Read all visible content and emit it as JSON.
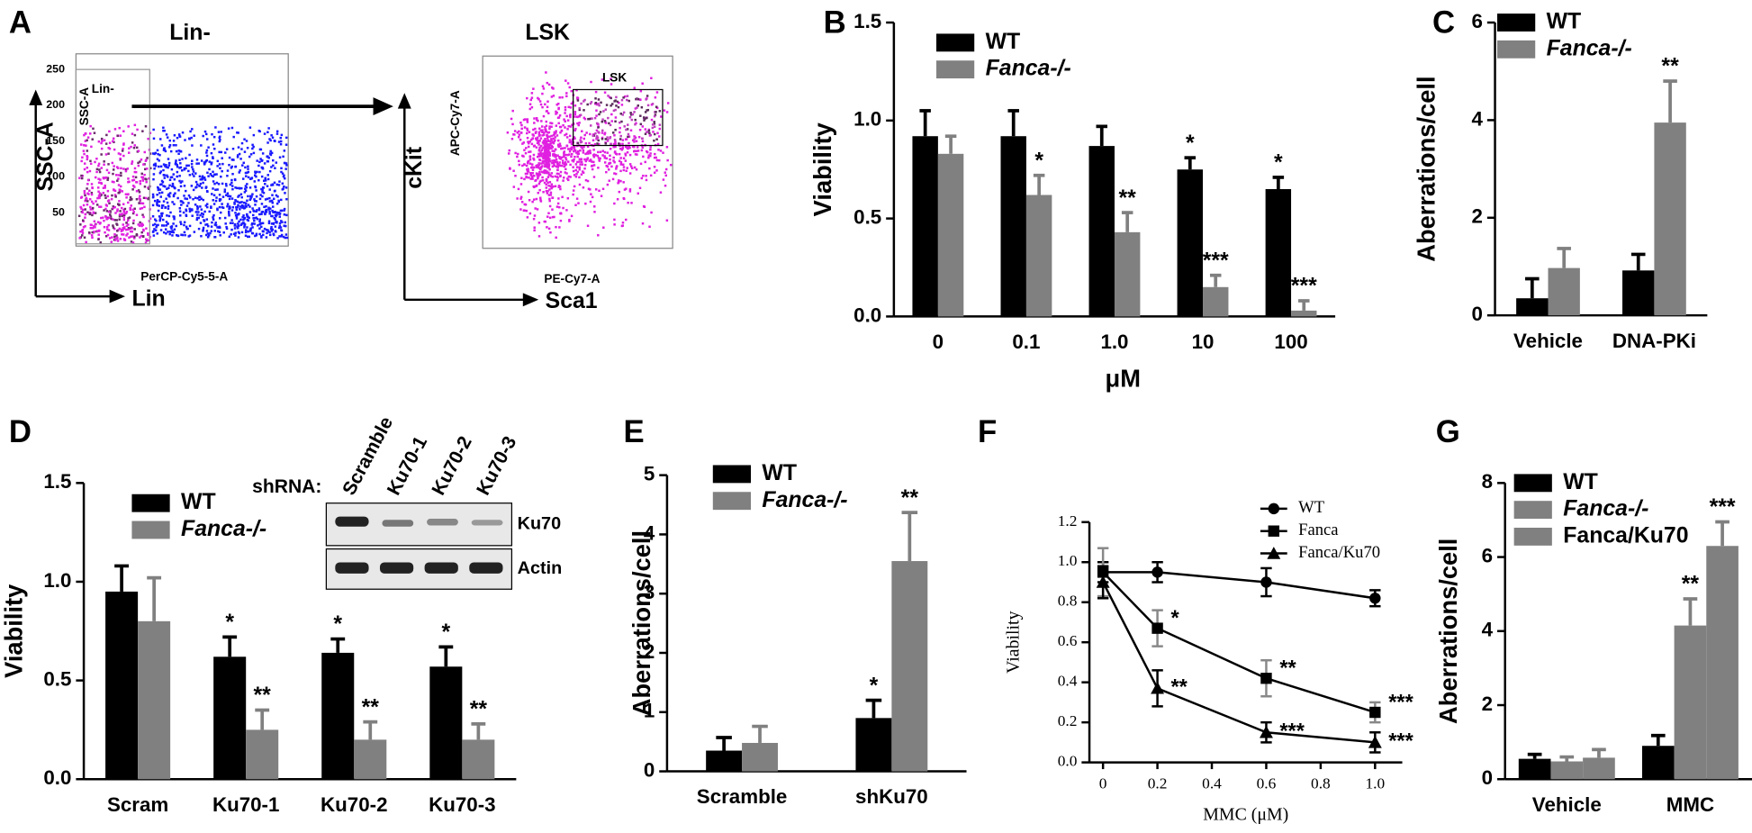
{
  "flow": {
    "panel": "A",
    "plots": [
      {
        "title": "Lin-",
        "y_label": "SSC-A",
        "x_label": "Lin",
        "y_channel": "SSC-A",
        "x_channel": "PerCP-Cy5-5-A",
        "gate": "Lin-",
        "yticks": [
          "250",
          "200",
          "150",
          "100",
          "50"
        ]
      },
      {
        "title": "LSK",
        "y_label": "cKit",
        "x_label": "Sca1",
        "y_channel": "APC-Cy7-A",
        "x_channel": "PE-Cy7-A",
        "gate": "LSK"
      }
    ]
  },
  "blot": {
    "label": "shRNA:",
    "lanes": [
      "Scramble",
      "Ku70-1",
      "Ku70-2",
      "Ku70-3"
    ],
    "rows": [
      "Ku70",
      "Actin"
    ]
  },
  "chart_data": [
    {
      "type": "bar",
      "panel": "B",
      "y_label": "Viability",
      "x_label": "μM",
      "categories": [
        "0",
        "0.1",
        "1.0",
        "10",
        "100"
      ],
      "ylim": [
        0,
        1.5
      ],
      "yticks": [
        {
          "value": 0,
          "label": "0.0"
        },
        {
          "value": 0.5,
          "label": "0.5"
        },
        {
          "value": 1,
          "label": "1.0"
        },
        {
          "value": 1.5,
          "label": "1.5"
        }
      ],
      "series": [
        {
          "name": "WT",
          "color": "#000000",
          "values": [
            0.92,
            0.92,
            0.87,
            0.75,
            0.65
          ],
          "errors": [
            0.13,
            0.13,
            0.1,
            0.06,
            0.06
          ],
          "significance": [
            null,
            null,
            null,
            "*",
            "*"
          ]
        },
        {
          "name": "Fanca-/-",
          "color": "#808080",
          "values": [
            0.83,
            0.62,
            0.43,
            0.15,
            0.03
          ],
          "errors": [
            0.09,
            0.1,
            0.1,
            0.06,
            0.05
          ],
          "significance": [
            null,
            "*",
            "**",
            "***",
            "***"
          ]
        }
      ]
    },
    {
      "type": "bar",
      "panel": "C",
      "y_label": "Aberrations/cell",
      "categories": [
        "Vehicle",
        "DNA-PKi"
      ],
      "ylim": [
        0,
        6
      ],
      "yticks": [
        0,
        2,
        4,
        6
      ],
      "series": [
        {
          "name": "WT",
          "color": "#000000",
          "values": [
            0.35,
            0.92
          ],
          "errors": [
            0.4,
            0.33
          ],
          "significance": [
            null,
            null
          ]
        },
        {
          "name": "Fanca-/-",
          "color": "#808080",
          "values": [
            0.97,
            3.95
          ],
          "errors": [
            0.4,
            0.85
          ],
          "significance": [
            null,
            "**"
          ]
        }
      ]
    },
    {
      "type": "bar",
      "panel": "D",
      "y_label": "Viability",
      "categories": [
        "Scram",
        "Ku70-1",
        "Ku70-2",
        "Ku70-3"
      ],
      "ylim": [
        0,
        1.5
      ],
      "yticks": [
        {
          "value": 0,
          "label": "0.0"
        },
        {
          "value": 0.5,
          "label": "0.5"
        },
        {
          "value": 1,
          "label": "1.0"
        },
        {
          "value": 1.5,
          "label": "1.5"
        }
      ],
      "series": [
        {
          "name": "WT",
          "color": "#000000",
          "values": [
            0.95,
            0.62,
            0.64,
            0.57
          ],
          "errors": [
            0.13,
            0.1,
            0.07,
            0.1
          ],
          "significance": [
            null,
            "*",
            "*",
            "*"
          ]
        },
        {
          "name": "Fanca-/-",
          "color": "#808080",
          "values": [
            0.8,
            0.25,
            0.2,
            0.2
          ],
          "errors": [
            0.22,
            0.1,
            0.09,
            0.08
          ],
          "significance": [
            null,
            "**",
            "**",
            "**"
          ]
        }
      ]
    },
    {
      "type": "bar",
      "panel": "E",
      "y_label": "Aberrations/cell",
      "categories": [
        "Scramble",
        "shKu70"
      ],
      "ylim": [
        0,
        5
      ],
      "yticks": [
        0,
        1,
        2,
        3,
        4,
        5
      ],
      "series": [
        {
          "name": "WT",
          "color": "#000000",
          "values": [
            0.35,
            0.9
          ],
          "errors": [
            0.22,
            0.3
          ],
          "significance": [
            null,
            "*"
          ]
        },
        {
          "name": "Fanca-/-",
          "color": "#808080",
          "values": [
            0.48,
            3.55
          ],
          "errors": [
            0.28,
            0.82
          ],
          "significance": [
            null,
            "**"
          ]
        }
      ]
    },
    {
      "type": "line",
      "panel": "F",
      "y_label": "Viability",
      "x_label": "MMC (μM)",
      "x": [
        0,
        0.2,
        0.6,
        1
      ],
      "xlim": [
        -0.05,
        1.1
      ],
      "xticks": [
        0,
        0.2,
        0.4,
        0.6,
        0.8,
        {
          "value": 1,
          "label": "1.0"
        }
      ],
      "ylim": [
        0,
        1.2
      ],
      "yticks": [
        {
          "value": 0,
          "label": "0.0"
        },
        0.2,
        0.4,
        0.6,
        0.8,
        {
          "value": 1,
          "label": "1.0"
        },
        {
          "value": 1.2,
          "label": "1.2"
        }
      ],
      "series": [
        {
          "name": "WT",
          "color": "#000000",
          "marker": "circle",
          "values": [
            0.95,
            0.95,
            0.9,
            0.82
          ],
          "errors": [
            0.05,
            0.05,
            0.07,
            0.04
          ],
          "significance": [
            null,
            null,
            null,
            null
          ]
        },
        {
          "name": "Fanca",
          "color": "#000000",
          "marker": "square",
          "values": [
            0.95,
            0.67,
            0.42,
            0.25
          ],
          "errors": [
            0.12,
            0.09,
            0.09,
            0.05
          ],
          "significance": [
            null,
            "*",
            "**",
            "***"
          ]
        },
        {
          "name": "Fanca/Ku70",
          "color": "#000000",
          "marker": "triangle",
          "values": [
            0.9,
            0.37,
            0.15,
            0.1
          ],
          "errors": [
            0.08,
            0.09,
            0.05,
            0.05
          ],
          "significance": [
            null,
            "**",
            "***",
            "***"
          ]
        }
      ]
    },
    {
      "type": "bar",
      "panel": "G",
      "y_label": "Aberrations/cell",
      "categories": [
        "Vehicle",
        "MMC"
      ],
      "ylim": [
        0,
        8
      ],
      "yticks": [
        0,
        2,
        4,
        6,
        8
      ],
      "series": [
        {
          "name": "WT",
          "color": "#000000",
          "values": [
            0.55,
            0.9
          ],
          "errors": [
            0.12,
            0.28
          ],
          "significance": [
            null,
            null
          ]
        },
        {
          "name": "Fanca-/-",
          "color": "#808080",
          "values": [
            0.48,
            4.15
          ],
          "errors": [
            0.12,
            0.72
          ],
          "significance": [
            null,
            "**"
          ]
        },
        {
          "name": "Fanca/Ku70",
          "color": "#808080",
          "values": [
            0.58,
            6.3
          ],
          "errors": [
            0.22,
            0.65
          ],
          "significance": [
            null,
            "***"
          ]
        }
      ]
    }
  ]
}
